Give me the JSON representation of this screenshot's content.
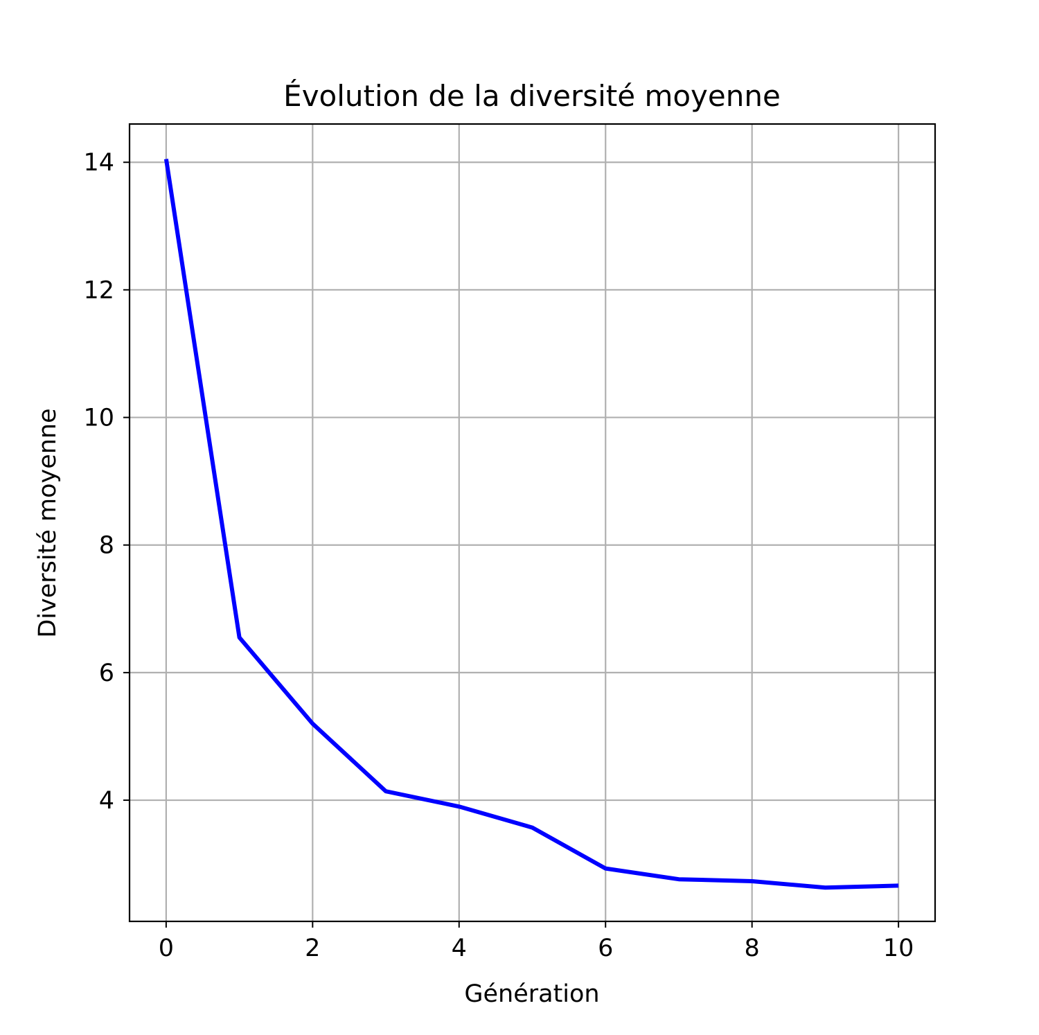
{
  "chart_data": {
    "type": "line",
    "title": "Évolution de la diversité moyenne",
    "xlabel": "Génération",
    "ylabel": "Diversité moyenne",
    "xlim": [
      -0.5,
      10.5
    ],
    "ylim": [
      2.1,
      14.6
    ],
    "xticks": [
      0,
      2,
      4,
      6,
      8,
      10
    ],
    "yticks": [
      4,
      6,
      8,
      10,
      12,
      14
    ],
    "grid": true,
    "series": [
      {
        "color": "#0000ff",
        "x": [
          0,
          1,
          2,
          3,
          4,
          5,
          6,
          7,
          8,
          9,
          10
        ],
        "y": [
          14.05,
          6.55,
          5.2,
          4.14,
          3.9,
          3.57,
          2.93,
          2.76,
          2.73,
          2.63,
          2.66
        ]
      }
    ]
  }
}
